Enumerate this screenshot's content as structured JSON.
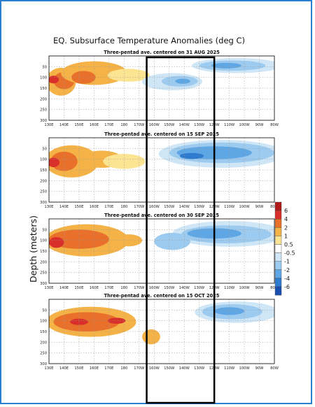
{
  "chart_data": {
    "type": "heatmap",
    "title": "EQ. Subsurface Temperature Anomalies (deg C)",
    "ylabel": "Depth (meters)",
    "xlabel": "",
    "x_ticks": [
      "130E",
      "140E",
      "150E",
      "160E",
      "170E",
      "180",
      "170W",
      "160W",
      "150W",
      "140W",
      "130W",
      "120W",
      "110W",
      "100W",
      "90W",
      "80W"
    ],
    "y_ticks": [
      "50",
      "100",
      "150",
      "200",
      "250",
      "300"
    ],
    "y_range_m": [
      0,
      300
    ],
    "x_range_lon_east": [
      130,
      280
    ],
    "grid": true,
    "legend_position": "right",
    "colorbar": {
      "labels": [
        "6",
        "4",
        "2",
        "1",
        "0.5",
        "-0.5",
        "-1",
        "-2",
        "-4",
        "-6"
      ],
      "colors": [
        "#b11a1a",
        "#d92f2a",
        "#e9702a",
        "#f4b247",
        "#fce592",
        "#ffffff",
        "#cfe6f7",
        "#9ccbef",
        "#5fa6e4",
        "#2f7bd0",
        "#1a4fb0"
      ]
    },
    "highlight_box_lon_east": [
      195,
      240
    ],
    "panels": [
      {
        "subtitle": "Three-pentad ave. centered on 31 AUG 2025",
        "blobs": [
          {
            "lon": 138,
            "depth": 120,
            "rlon": 10,
            "rdep": 65,
            "level": 1
          },
          {
            "lon": 140,
            "depth": 115,
            "rlon": 7,
            "rdep": 40,
            "level": 2
          },
          {
            "lon": 133,
            "depth": 110,
            "rlon": 3.5,
            "rdep": 18,
            "level": 4
          },
          {
            "lon": 160,
            "depth": 80,
            "rlon": 22,
            "rdep": 55,
            "level": 1
          },
          {
            "lon": 153,
            "depth": 100,
            "rlon": 8,
            "rdep": 30,
            "level": 2
          },
          {
            "lon": 183,
            "depth": 90,
            "rlon": 14,
            "rdep": 30,
            "level": 0.5
          },
          {
            "lon": 212,
            "depth": 120,
            "rlon": 20,
            "rdep": 40,
            "level": -0.5
          },
          {
            "lon": 217,
            "depth": 118,
            "rlon": 12,
            "rdep": 25,
            "level": -1
          },
          {
            "lon": 219,
            "depth": 118,
            "rlon": 5,
            "rdep": 12,
            "level": -2
          },
          {
            "lon": 255,
            "depth": 45,
            "rlon": 30,
            "rdep": 35,
            "level": -0.5
          },
          {
            "lon": 252,
            "depth": 45,
            "rlon": 22,
            "rdep": 24,
            "level": -1
          },
          {
            "lon": 248,
            "depth": 45,
            "rlon": 10,
            "rdep": 13,
            "level": -2
          }
        ]
      },
      {
        "subtitle": "Three-pentad ave. centered on 15 SEP 2025",
        "blobs": [
          {
            "lon": 145,
            "depth": 110,
            "rlon": 18,
            "rdep": 75,
            "level": 1
          },
          {
            "lon": 140,
            "depth": 110,
            "rlon": 9,
            "rdep": 45,
            "level": 2
          },
          {
            "lon": 133,
            "depth": 115,
            "rlon": 4,
            "rdep": 22,
            "level": 4
          },
          {
            "lon": 165,
            "depth": 100,
            "rlon": 14,
            "rdep": 40,
            "level": 1
          },
          {
            "lon": 180,
            "depth": 110,
            "rlon": 14,
            "rdep": 35,
            "level": 0.5
          },
          {
            "lon": 245,
            "depth": 75,
            "rlon": 42,
            "rdep": 65,
            "level": -0.5
          },
          {
            "lon": 245,
            "depth": 70,
            "rlon": 35,
            "rdep": 48,
            "level": -1
          },
          {
            "lon": 240,
            "depth": 70,
            "rlon": 25,
            "rdep": 30,
            "level": -2
          },
          {
            "lon": 225,
            "depth": 85,
            "rlon": 8,
            "rdep": 14,
            "level": -4
          }
        ]
      },
      {
        "subtitle": "Three-pentad ave. centered on 30 SEP 2025",
        "blobs": [
          {
            "lon": 155,
            "depth": 100,
            "rlon": 28,
            "rdep": 75,
            "level": 1
          },
          {
            "lon": 150,
            "depth": 95,
            "rlon": 20,
            "rdep": 45,
            "level": 2
          },
          {
            "lon": 135,
            "depth": 110,
            "rlon": 5,
            "rdep": 25,
            "level": 4
          },
          {
            "lon": 183,
            "depth": 100,
            "rlon": 9,
            "rdep": 28,
            "level": 1
          },
          {
            "lon": 250,
            "depth": 70,
            "rlon": 38,
            "rdep": 60,
            "level": -0.5
          },
          {
            "lon": 248,
            "depth": 72,
            "rlon": 30,
            "rdep": 42,
            "level": -1
          },
          {
            "lon": 240,
            "depth": 68,
            "rlon": 18,
            "rdep": 24,
            "level": -2
          },
          {
            "lon": 212,
            "depth": 105,
            "rlon": 12,
            "rdep": 40,
            "level": -1
          }
        ]
      },
      {
        "subtitle": "Three-pentad ave. centered on 15 OCT 2025",
        "blobs": [
          {
            "lon": 158,
            "depth": 105,
            "rlon": 30,
            "rdep": 70,
            "level": 1
          },
          {
            "lon": 155,
            "depth": 105,
            "rlon": 22,
            "rdep": 45,
            "level": 2
          },
          {
            "lon": 150,
            "depth": 105,
            "rlon": 6,
            "rdep": 15,
            "level": 4
          },
          {
            "lon": 175,
            "depth": 100,
            "rlon": 6,
            "rdep": 14,
            "level": 4
          },
          {
            "lon": 198,
            "depth": 175,
            "rlon": 6,
            "rdep": 35,
            "level": 1
          },
          {
            "lon": 255,
            "depth": 60,
            "rlon": 28,
            "rdep": 50,
            "level": -0.5
          },
          {
            "lon": 252,
            "depth": 58,
            "rlon": 20,
            "rdep": 35,
            "level": -1
          },
          {
            "lon": 250,
            "depth": 55,
            "rlon": 10,
            "rdep": 18,
            "level": -2
          }
        ]
      }
    ]
  }
}
